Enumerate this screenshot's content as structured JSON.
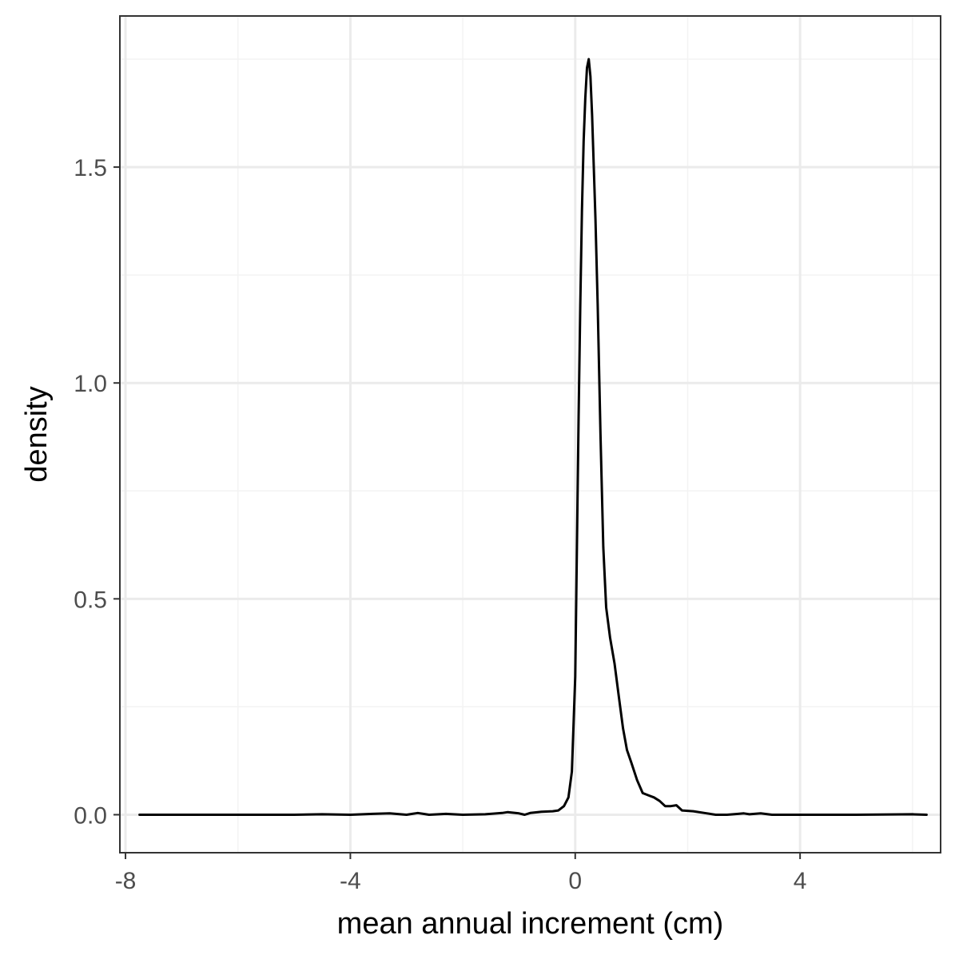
{
  "chart_data": {
    "type": "line",
    "title": "",
    "xlabel": "mean annual increment (cm)",
    "ylabel": "density",
    "xlim": [
      -8.1,
      6.5
    ],
    "ylim": [
      -0.088,
      1.85
    ],
    "grid": true,
    "legend": "none",
    "x_ticks": [
      {
        "value": -8,
        "label": "-8"
      },
      {
        "value": -4,
        "label": "-4"
      },
      {
        "value": 0,
        "label": "0"
      },
      {
        "value": 4,
        "label": "4"
      }
    ],
    "x_minor_ticks": [
      -6,
      -2,
      2,
      6
    ],
    "y_ticks": [
      {
        "value": 0.0,
        "label": "0.0"
      },
      {
        "value": 0.5,
        "label": "0.5"
      },
      {
        "value": 1.0,
        "label": "1.0"
      },
      {
        "value": 1.5,
        "label": "1.5"
      }
    ],
    "y_minor_ticks": [
      0.25,
      0.75,
      1.25,
      1.75
    ],
    "colors": {
      "line": "#000000",
      "panel_border": "#333333",
      "grid_major": "#ebebeb",
      "grid_minor": "#f3f3f3",
      "tick_text": "#4d4d4d"
    },
    "series": [
      {
        "x": [
          -7.75,
          -7.0,
          -6.0,
          -5.0,
          -4.5,
          -4.0,
          -3.6,
          -3.3,
          -3.0,
          -2.8,
          -2.6,
          -2.3,
          -2.0,
          -1.6,
          -1.3,
          -1.2,
          -1.0,
          -0.9,
          -0.8,
          -0.6,
          -0.4,
          -0.3,
          -0.2,
          -0.12,
          -0.06,
          0.0,
          0.03,
          0.06,
          0.09,
          0.12,
          0.15,
          0.18,
          0.21,
          0.24,
          0.27,
          0.3,
          0.33,
          0.36,
          0.4,
          0.45,
          0.5,
          0.55,
          0.62,
          0.7,
          0.78,
          0.85,
          0.92,
          1.0,
          1.1,
          1.2,
          1.3,
          1.4,
          1.5,
          1.6,
          1.7,
          1.8,
          1.9,
          2.1,
          2.3,
          2.5,
          2.7,
          2.9,
          3.0,
          3.1,
          3.3,
          3.5,
          4.0,
          5.0,
          6.0,
          6.25
        ],
        "y": [
          0.0,
          0.0,
          0.0,
          0.0,
          0.001,
          0.0,
          0.002,
          0.003,
          0.0,
          0.004,
          0.0,
          0.002,
          0.0,
          0.001,
          0.004,
          0.006,
          0.003,
          0.0,
          0.004,
          0.007,
          0.008,
          0.01,
          0.02,
          0.04,
          0.1,
          0.32,
          0.62,
          0.92,
          1.18,
          1.4,
          1.56,
          1.66,
          1.73,
          1.75,
          1.71,
          1.62,
          1.5,
          1.38,
          1.18,
          0.88,
          0.62,
          0.48,
          0.41,
          0.35,
          0.27,
          0.2,
          0.15,
          0.12,
          0.08,
          0.05,
          0.045,
          0.04,
          0.032,
          0.02,
          0.02,
          0.022,
          0.01,
          0.008,
          0.004,
          0.0,
          0.0,
          0.002,
          0.003,
          0.001,
          0.003,
          0.0,
          0.0,
          0.0,
          0.001,
          0.0
        ]
      }
    ]
  }
}
